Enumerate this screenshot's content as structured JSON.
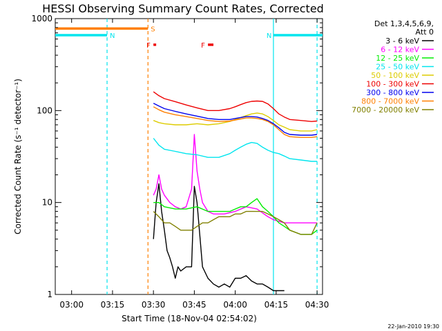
{
  "chart_data": {
    "type": "line",
    "title": "HESSI Observing Summary Count Rates, Corrected",
    "xlabel": "Start Time (18-Nov-04 02:54:02)",
    "ylabel": "Corrected Count Rate (s⁻¹ detector⁻¹)",
    "footer": "22-Jan-2010 19:30",
    "x_unit": "minutes after 02:54:02",
    "xlim": [
      0,
      98
    ],
    "ylim": [
      1,
      1000
    ],
    "yscale": "log",
    "x_ticks": [
      {
        "label": "03:00",
        "x": 6
      },
      {
        "label": "03:15",
        "x": 21
      },
      {
        "label": "03:30",
        "x": 36
      },
      {
        "label": "03:45",
        "x": 51
      },
      {
        "label": "04:00",
        "x": 66
      },
      {
        "label": "04:15",
        "x": 81
      },
      {
        "label": "04:30",
        "x": 96
      }
    ],
    "y_ticks": [
      {
        "label": "1",
        "y": 1
      },
      {
        "label": "10",
        "y": 10
      },
      {
        "label": "100",
        "y": 100
      },
      {
        "label": "1000",
        "y": 1000
      }
    ],
    "legend": {
      "header": [
        "Det 1,3,4,5,6,9,",
        "Att 0"
      ],
      "position": "right"
    },
    "series": [
      {
        "name": "3 - 6 keV",
        "color": "#000000",
        "x": [
          36,
          37,
          38,
          39,
          40,
          41,
          42,
          43,
          44,
          45,
          46,
          48,
          50,
          51,
          52,
          54,
          56,
          58,
          60,
          62,
          64,
          66,
          68,
          70,
          72,
          74,
          76,
          78,
          80,
          82,
          84
        ],
        "y": [
          4,
          10,
          16,
          8,
          5,
          3,
          2.5,
          2,
          1.5,
          2,
          1.8,
          2,
          2,
          15,
          10,
          2,
          1.5,
          1.3,
          1.2,
          1.3,
          1.2,
          1.5,
          1.5,
          1.6,
          1.4,
          1.3,
          1.3,
          1.2,
          1.1,
          1.1,
          1.1
        ]
      },
      {
        "name": "6 - 12 keV",
        "color": "#ff00ff",
        "x": [
          36,
          37,
          38,
          39,
          40,
          42,
          44,
          46,
          48,
          50,
          51,
          52,
          53,
          54,
          56,
          58,
          62,
          66,
          70,
          74,
          78,
          80,
          84,
          90,
          96
        ],
        "y": [
          12,
          14,
          20,
          14,
          12,
          10,
          9,
          8.5,
          9,
          14,
          55,
          22,
          14,
          10,
          8,
          7.5,
          7.5,
          8,
          9,
          8.5,
          7,
          6.5,
          6,
          6,
          6
        ]
      },
      {
        "name": "12 - 25 keV",
        "color": "#00ee00",
        "x": [
          36,
          38,
          40,
          44,
          48,
          52,
          56,
          60,
          64,
          66,
          68,
          70,
          72,
          74,
          76,
          78,
          80,
          82,
          84,
          86,
          90,
          94,
          96
        ],
        "y": [
          10,
          10,
          9,
          8.5,
          8.5,
          9,
          8,
          8,
          8,
          8.5,
          9,
          9,
          10,
          11,
          9,
          8,
          7,
          6,
          5.5,
          5,
          4.5,
          4.5,
          5
        ]
      },
      {
        "name": "25 - 50 keV",
        "color": "#00e5ee",
        "x": [
          36,
          38,
          40,
          44,
          48,
          52,
          56,
          60,
          64,
          66,
          68,
          70,
          72,
          74,
          76,
          78,
          80,
          82,
          84,
          86,
          90,
          94,
          96
        ],
        "y": [
          50,
          42,
          38,
          36,
          34,
          33,
          31,
          31,
          34,
          37,
          40,
          43,
          45,
          44,
          40,
          37,
          35,
          34,
          32,
          30,
          29,
          28,
          28
        ]
      },
      {
        "name": "50 - 100 keV",
        "color": "#ddcc00",
        "x": [
          36,
          38,
          40,
          44,
          48,
          52,
          56,
          60,
          64,
          66,
          68,
          70,
          72,
          74,
          76,
          78,
          80,
          82,
          84,
          86,
          90,
          94,
          96
        ],
        "y": [
          78,
          74,
          72,
          70,
          70,
          72,
          70,
          72,
          76,
          80,
          84,
          88,
          92,
          94,
          92,
          86,
          78,
          70,
          66,
          62,
          60,
          60,
          62
        ]
      },
      {
        "name": "100 - 300 keV",
        "color": "#ee0000",
        "x": [
          36,
          38,
          40,
          44,
          48,
          52,
          56,
          60,
          64,
          66,
          68,
          70,
          72,
          74,
          76,
          78,
          80,
          82,
          84,
          86,
          90,
          94,
          96
        ],
        "y": [
          160,
          145,
          135,
          125,
          115,
          107,
          100,
          100,
          105,
          110,
          116,
          122,
          126,
          127,
          126,
          118,
          105,
          92,
          85,
          80,
          78,
          76,
          77
        ]
      },
      {
        "name": "300 - 800 keV",
        "color": "#0000ee",
        "x": [
          36,
          38,
          40,
          44,
          48,
          52,
          56,
          60,
          64,
          66,
          68,
          70,
          72,
          74,
          76,
          78,
          80,
          82,
          84,
          86,
          90,
          94,
          96
        ],
        "y": [
          120,
          112,
          105,
          98,
          92,
          87,
          82,
          80,
          80,
          82,
          84,
          86,
          86,
          85,
          82,
          78,
          72,
          65,
          58,
          55,
          54,
          54,
          55
        ]
      },
      {
        "name": "800 - 7000 keV",
        "color": "#ff7f00",
        "x": [
          36,
          38,
          40,
          44,
          48,
          52,
          56,
          60,
          64,
          66,
          68,
          70,
          72,
          74,
          76,
          78,
          80,
          82,
          84,
          86,
          90,
          94,
          96
        ],
        "y": [
          110,
          102,
          96,
          90,
          86,
          82,
          78,
          76,
          77,
          79,
          81,
          83,
          83,
          82,
          80,
          76,
          70,
          62,
          55,
          52,
          51,
          51,
          52
        ]
      },
      {
        "name": "7000 - 20000 keV",
        "color": "#808000",
        "x": [
          36,
          38,
          40,
          42,
          44,
          46,
          48,
          50,
          52,
          54,
          56,
          58,
          60,
          62,
          64,
          66,
          68,
          70,
          72,
          74,
          76,
          78,
          80,
          82,
          84,
          86,
          90,
          94,
          96
        ],
        "y": [
          8,
          7,
          6,
          6,
          5.5,
          5,
          5,
          5,
          5.5,
          6,
          6,
          6.5,
          7,
          7,
          7,
          7.5,
          7.5,
          8,
          8,
          8,
          8,
          7.5,
          7,
          6.5,
          6,
          5,
          4.5,
          4.5,
          6
        ]
      }
    ],
    "flag_bars": [
      {
        "label": "S",
        "color": "#ff7f00",
        "x_start": 0,
        "x_end": 34,
        "level": 780
      },
      {
        "label": "N",
        "color": "#00e5ee",
        "x_start": 0,
        "x_end": 19,
        "level": 660
      },
      {
        "label": "N",
        "color": "#00e5ee",
        "x_start": 80,
        "x_end": 98,
        "level": 660
      },
      {
        "label": "F",
        "color": "#ee0000",
        "x_start": 36,
        "x_end": 37,
        "level": 520
      },
      {
        "label": "F",
        "color": "#ee0000",
        "x_start": 56,
        "x_end": 58,
        "level": 520
      }
    ],
    "vertical_markers": [
      {
        "x": 19,
        "color": "#00e5ee",
        "style": "dashed"
      },
      {
        "x": 34,
        "color": "#ff7f00",
        "style": "dashed"
      },
      {
        "x": 80,
        "color": "#00e5ee",
        "style": "solid"
      },
      {
        "x": 96,
        "color": "#00e5ee",
        "style": "dashed"
      }
    ],
    "grid": false
  }
}
